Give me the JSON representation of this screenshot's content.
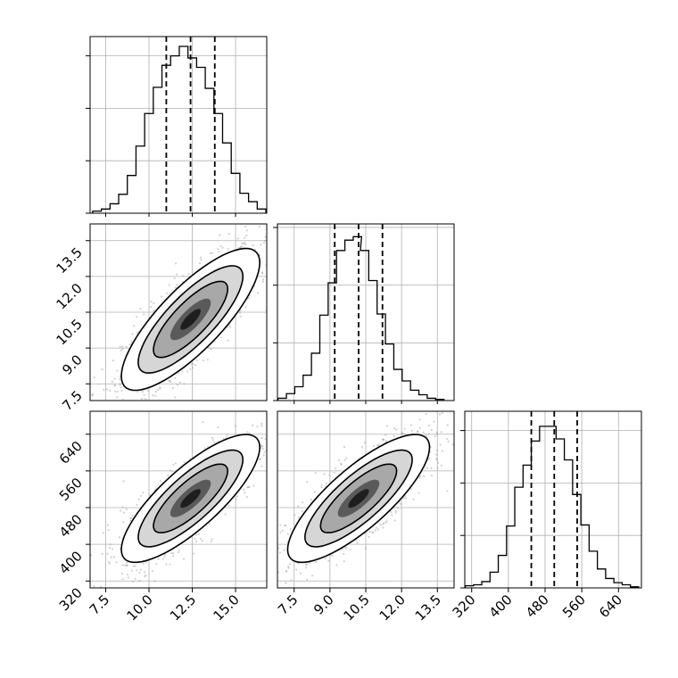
{
  "chart_data": [
    {
      "type": "corner",
      "parameters": [
        "",
        "",
        ""
      ],
      "ranges": [
        [
          6.6,
          16.8
        ],
        [
          6.8,
          14.2
        ],
        [
          305,
          690
        ]
      ],
      "axis_ticks": [
        {
          "ticks": [
            7.5,
            10.0,
            12.5,
            15.0
          ],
          "labels": [
            "7.5",
            "10.0",
            "12.5",
            "15.0"
          ]
        },
        {
          "ticks": [
            7.5,
            9.0,
            10.5,
            12.0,
            13.5
          ],
          "labels": [
            "7.5",
            "9.0",
            "10.5",
            "12.0",
            "13.5"
          ]
        },
        {
          "ticks": [
            320,
            400,
            480,
            560,
            640
          ],
          "labels": [
            "320",
            "400",
            "480",
            "560",
            "640"
          ]
        }
      ],
      "quantiles": [
        [
          11.0,
          12.4,
          13.8
        ],
        [
          9.2,
          10.2,
          11.2
        ],
        [
          450,
          500,
          550
        ]
      ],
      "histograms": [
        {
          "type": "bar",
          "categories": [
            7.0,
            7.5,
            8.0,
            8.5,
            9.0,
            9.5,
            10.0,
            10.5,
            11.0,
            11.5,
            12.0,
            12.5,
            13.0,
            13.5,
            14.0,
            14.5,
            15.0,
            15.5,
            16.0,
            16.5
          ],
          "values": [
            2,
            4,
            9,
            18,
            36,
            64,
            95,
            120,
            141,
            150,
            159,
            148,
            139,
            119,
            95,
            67,
            38,
            19,
            11,
            4
          ]
        },
        {
          "type": "bar",
          "categories": [
            7.0,
            7.35,
            7.7,
            8.05,
            8.4,
            8.75,
            9.1,
            9.45,
            9.8,
            10.15,
            10.45,
            10.8,
            11.15,
            11.5,
            11.85,
            12.2,
            12.55,
            12.9,
            13.25,
            13.6
          ],
          "values": [
            2,
            6,
            12,
            22,
            41,
            74,
            102,
            130,
            139,
            142,
            130,
            104,
            75,
            49,
            27,
            17,
            9,
            5,
            2,
            1
          ]
        },
        {
          "type": "bar",
          "categories": [
            315,
            333,
            351,
            369,
            387,
            405,
            423,
            441,
            459,
            477,
            495,
            513,
            531,
            549,
            567,
            585,
            603,
            621,
            639,
            657,
            675
          ],
          "values": [
            2,
            3,
            6,
            15,
            31,
            59,
            96,
            117,
            140,
            154,
            154,
            142,
            122,
            89,
            60,
            35,
            18,
            9,
            5,
            3,
            1
          ]
        }
      ],
      "correlations": [
        {
          "pair": [
            1,
            0
          ],
          "mean": [
            12.4,
            10.2
          ],
          "sd": [
            1.95,
            1.45
          ],
          "rho": 0.8
        },
        {
          "pair": [
            2,
            0
          ],
          "mean": [
            12.4,
            500
          ],
          "sd": [
            1.95,
            68
          ],
          "rho": 0.8
        },
        {
          "pair": [
            2,
            1
          ],
          "mean": [
            10.2,
            500
          ],
          "sd": [
            1.45,
            68
          ],
          "rho": 0.8
        }
      ],
      "hist_ymax": [
        165,
        150,
        165
      ],
      "grid": true,
      "colors": {
        "line": "#000000",
        "grid": "#b0b0b0",
        "points": "#9a9a9a"
      }
    }
  ]
}
